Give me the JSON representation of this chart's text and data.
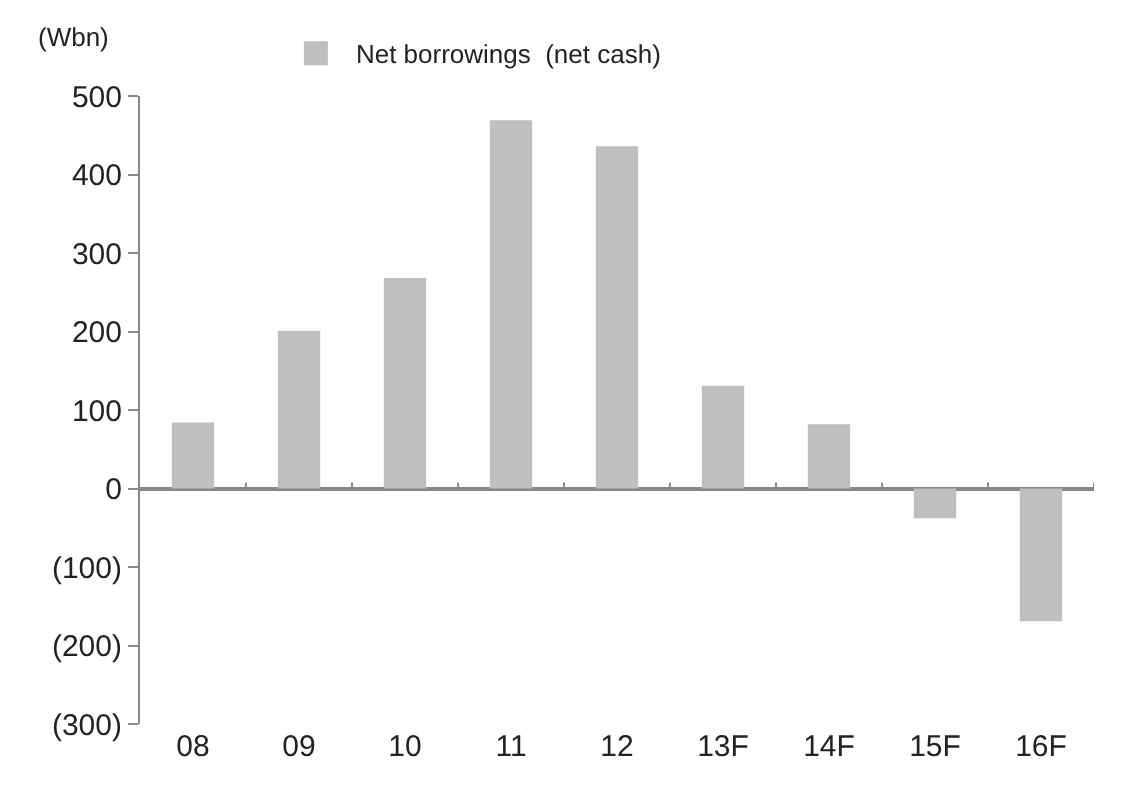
{
  "chart_data": {
    "type": "bar",
    "ylabel": "(Wbn)",
    "categories": [
      "08",
      "09",
      "10",
      "11",
      "12",
      "13F",
      "14F",
      "15F",
      "16F"
    ],
    "series": [
      {
        "name": "Net borrowings  (net cash)",
        "color": "#bfbfbf",
        "values": [
          84,
          201,
          268,
          469,
          436,
          131,
          82,
          -38,
          -169
        ]
      }
    ],
    "ylim": [
      -300,
      500
    ],
    "yticks": [
      {
        "value": -300,
        "label": "(300)"
      },
      {
        "value": -200,
        "label": "(200)"
      },
      {
        "value": -100,
        "label": "(100)"
      },
      0,
      100,
      200,
      300,
      400,
      500
    ],
    "legend": "top"
  }
}
